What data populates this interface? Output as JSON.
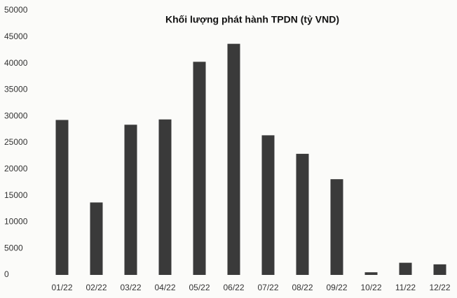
{
  "chart_data": {
    "type": "bar",
    "title": "Khối lượng phát hành TPDN (tỷ VND)",
    "categories": [
      "01/22",
      "02/22",
      "03/22",
      "04/22",
      "05/22",
      "06/22",
      "07/22",
      "08/22",
      "09/22",
      "10/22",
      "11/22",
      "12/22"
    ],
    "values": [
      29300,
      13700,
      28400,
      29400,
      40300,
      43700,
      26400,
      22900,
      18100,
      500,
      2300,
      2000
    ],
    "color": "#3a3a3a",
    "ylim": [
      0,
      50000
    ],
    "yticks": [
      0,
      5000,
      10000,
      15000,
      20000,
      25000,
      30000,
      35000,
      40000,
      45000,
      50000
    ],
    "grid": false
  }
}
